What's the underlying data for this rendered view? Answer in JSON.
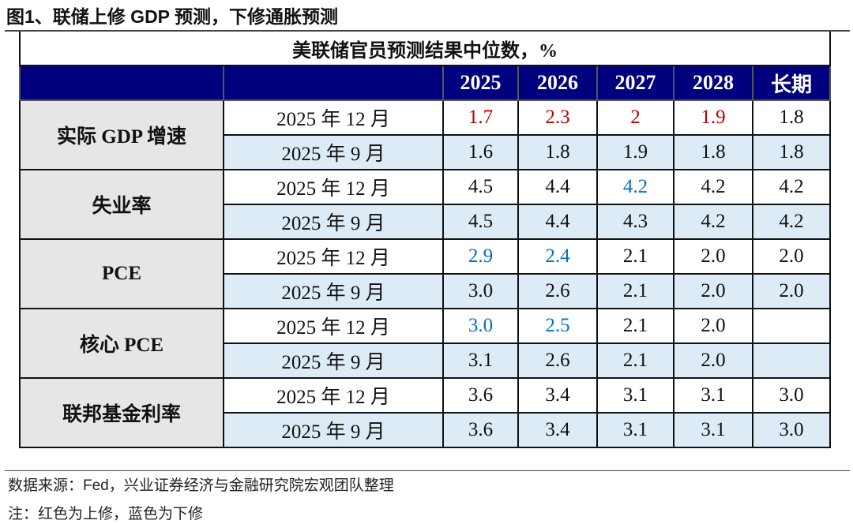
{
  "figure_title": "图1、联储上修 GDP 预测，下修通胀预测",
  "table": {
    "caption": "美联储官员预测结果中位数，%",
    "columns": [
      "2025",
      "2026",
      "2027",
      "2028",
      "长期"
    ],
    "groups": [
      {
        "label": "实际 GDP 增速",
        "rows": [
          {
            "date": "2025 年 12 月",
            "values": [
              "1.7",
              "2.3",
              "2",
              "1.9",
              "1.8"
            ],
            "colors": [
              "up",
              "up",
              "up",
              "up",
              ""
            ]
          },
          {
            "date": "2025 年 9 月",
            "values": [
              "1.6",
              "1.8",
              "1.9",
              "1.8",
              "1.8"
            ],
            "colors": [
              "",
              "",
              "",
              "",
              ""
            ]
          }
        ]
      },
      {
        "label": "失业率",
        "rows": [
          {
            "date": "2025 年 12 月",
            "values": [
              "4.5",
              "4.4",
              "4.2",
              "4.2",
              "4.2"
            ],
            "colors": [
              "",
              "",
              "down",
              "",
              ""
            ]
          },
          {
            "date": "2025 年 9 月",
            "values": [
              "4.5",
              "4.4",
              "4.3",
              "4.2",
              "4.2"
            ],
            "colors": [
              "",
              "",
              "",
              "",
              ""
            ]
          }
        ]
      },
      {
        "label": "PCE",
        "rows": [
          {
            "date": "2025 年 12 月",
            "values": [
              "2.9",
              "2.4",
              "2.1",
              "2.0",
              "2.0"
            ],
            "colors": [
              "down",
              "down",
              "",
              "",
              ""
            ]
          },
          {
            "date": "2025 年 9 月",
            "values": [
              "3.0",
              "2.6",
              "2.1",
              "2.0",
              "2.0"
            ],
            "colors": [
              "",
              "",
              "",
              "",
              ""
            ]
          }
        ]
      },
      {
        "label": "核心 PCE",
        "rows": [
          {
            "date": "2025 年 12 月",
            "values": [
              "3.0",
              "2.5",
              "2.1",
              "2.0",
              ""
            ],
            "colors": [
              "down",
              "down",
              "",
              "",
              ""
            ]
          },
          {
            "date": "2025 年 9 月",
            "values": [
              "3.1",
              "2.6",
              "2.1",
              "2.0",
              ""
            ],
            "colors": [
              "",
              "",
              "",
              "",
              ""
            ]
          }
        ]
      },
      {
        "label": "联邦基金利率",
        "rows": [
          {
            "date": "2025 年 12 月",
            "values": [
              "3.6",
              "3.4",
              "3.1",
              "3.1",
              "3.0"
            ],
            "colors": [
              "",
              "",
              "",
              "",
              ""
            ]
          },
          {
            "date": "2025 年 9 月",
            "values": [
              "3.6",
              "3.4",
              "3.1",
              "3.1",
              "3.0"
            ],
            "colors": [
              "",
              "",
              "",
              "",
              ""
            ]
          }
        ]
      }
    ]
  },
  "source": "数据来源：Fed，兴业证券经济与金融研究院宏观团队整理",
  "note": "注：红色为上修，蓝色为下修",
  "colors": {
    "header_bg": "#00007f",
    "upward_revision": "#c00000",
    "downward_revision": "#0070c0",
    "alt_row": "#ddebf7",
    "group_bg": "#e6e6e6"
  }
}
